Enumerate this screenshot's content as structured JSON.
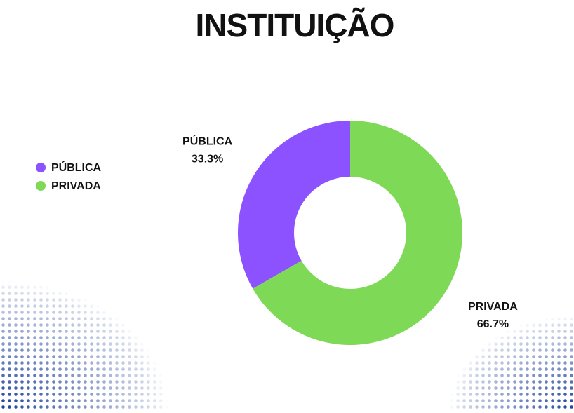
{
  "chart_data": {
    "type": "pie",
    "title": "INSTITUIÇÃO",
    "categories": [
      "PÚBLICA",
      "PRIVADA"
    ],
    "values": [
      33.3,
      66.7
    ],
    "value_labels": [
      "33.3%",
      "66.7%"
    ],
    "colors": [
      "#8c52ff",
      "#7ed957"
    ],
    "donut": true,
    "legend": "left"
  }
}
